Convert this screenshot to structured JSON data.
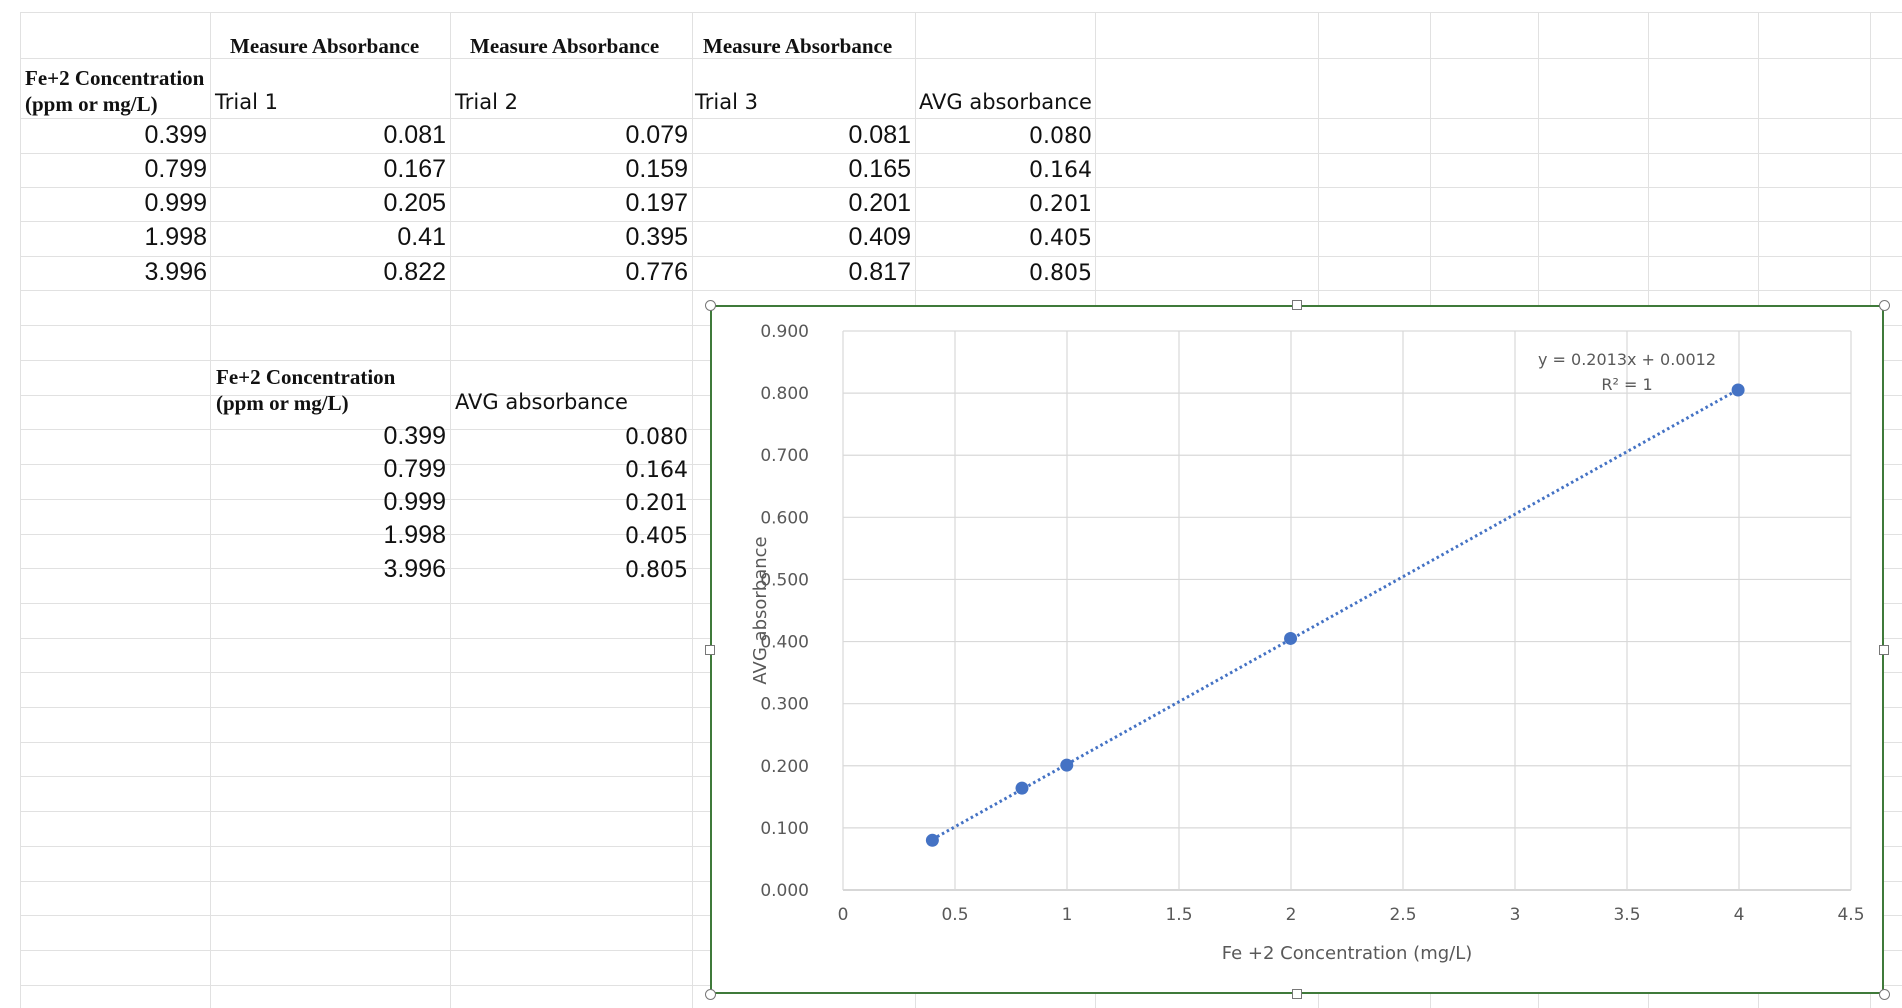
{
  "table1": {
    "title_row": [
      "Measure Absorbance",
      "Measure Absorbance",
      "Measure Absorbance"
    ],
    "conc_header_line1": "Fe+2 Concentration",
    "conc_header_line2": "(ppm or mg/L)",
    "trial_headers": [
      "Trial 1",
      "Trial 2",
      "Trial 3"
    ],
    "avg_header": "AVG absorbance",
    "rows": [
      [
        "0.399",
        "0.081",
        "0.079",
        "0.081",
        "0.080"
      ],
      [
        "0.799",
        "0.167",
        "0.159",
        "0.165",
        "0.164"
      ],
      [
        "0.999",
        "0.205",
        "0.197",
        "0.201",
        "0.201"
      ],
      [
        "1.998",
        "0.41",
        "0.395",
        "0.409",
        "0.405"
      ],
      [
        "3.996",
        "0.822",
        "0.776",
        "0.817",
        "0.805"
      ]
    ]
  },
  "table2": {
    "conc_header_line1": "Fe+2 Concentration",
    "conc_header_line2": "(ppm or mg/L)",
    "avg_header": "AVG absorbance",
    "rows": [
      [
        "0.399",
        "0.080"
      ],
      [
        "0.799",
        "0.164"
      ],
      [
        "0.999",
        "0.201"
      ],
      [
        "1.998",
        "0.405"
      ],
      [
        "3.996",
        "0.805"
      ]
    ]
  },
  "chart_data": {
    "type": "scatter",
    "title": "",
    "xlabel": "Fe +2 Concentration (mg/L)",
    "ylabel": "AVG absorbance",
    "xlim": [
      0,
      4.5
    ],
    "ylim": [
      0,
      0.9
    ],
    "x_ticks": [
      "0",
      "0.5",
      "1",
      "1.5",
      "2",
      "2.5",
      "3",
      "3.5",
      "4",
      "4.5"
    ],
    "y_ticks": [
      "0.000",
      "0.100",
      "0.200",
      "0.300",
      "0.400",
      "0.500",
      "0.600",
      "0.700",
      "0.800",
      "0.900"
    ],
    "grid": true,
    "series": [
      {
        "x": [
          0.399,
          0.799,
          0.999,
          1.998,
          3.996
        ],
        "y": [
          0.08,
          0.164,
          0.201,
          0.405,
          0.805
        ],
        "color": "#4472c4"
      }
    ],
    "trendline": {
      "type": "linear",
      "slope": 0.2013,
      "intercept": 0.0012,
      "style": "dotted",
      "color": "#4472c4"
    },
    "equation_label": "y = 0.2013x + 0.0012",
    "r2_label": "R² = 1"
  }
}
